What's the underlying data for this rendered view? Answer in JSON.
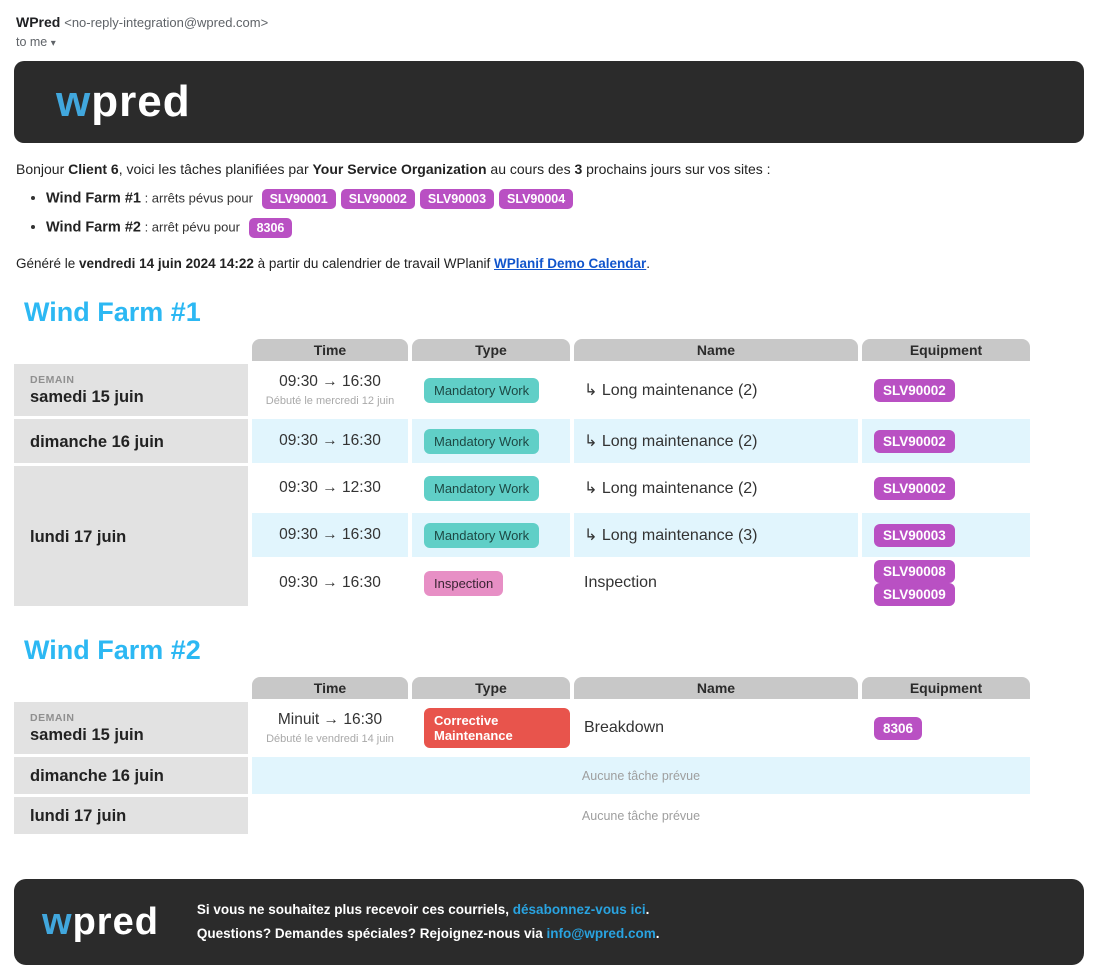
{
  "colors": {
    "accent_heading": "#2cb8f3",
    "brand_blue": "#41a7dd",
    "dark_bg": "#2b2b2b",
    "equipment_badge": "#b950c3",
    "type_teal": "#60cfc7",
    "type_pink": "#e78fc5",
    "type_red": "#e8544c",
    "row_stripe": "#e1f5fd",
    "header_cell": "#c8c8c8",
    "date_cell": "#e2e2e2",
    "body_link": "#1155cc",
    "footer_link": "#29a3e0"
  },
  "email_meta": {
    "sender_name": "WPred",
    "sender_address": "<no-reply-integration@wpred.com>",
    "recipient_label": "to me",
    "dropdown_icon": "▾"
  },
  "brand": {
    "logo_first": "w",
    "logo_rest": "pred"
  },
  "intro": {
    "greeting_prefix": "Bonjour ",
    "client": "Client 6",
    "mid1": ", voici les tâches planifiées par ",
    "org": "Your Service Organization",
    "mid2": " au cours des ",
    "days": "3",
    "suffix": " prochains jours sur vos sites :"
  },
  "summary": {
    "items": [
      {
        "site": "Wind Farm #1",
        "label": ": arrêts pévus pour",
        "badges": [
          "SLV90001",
          "SLV90002",
          "SLV90003",
          "SLV90004"
        ]
      },
      {
        "site": "Wind Farm #2",
        "label": ": arrêt pévu pour",
        "badges": [
          "8306"
        ]
      }
    ]
  },
  "generated": {
    "prefix": "Généré le ",
    "datetime": "vendredi 14 juin 2024 14:22",
    "mid": " à partir du calendrier de travail WPlanif ",
    "link": "WPlanif Demo Calendar",
    "suffix": "."
  },
  "table_columns": [
    "Time",
    "Type",
    "Name",
    "Equipment"
  ],
  "sections": [
    {
      "title": "Wind Farm #1",
      "rows": [
        {
          "tomorrow": "DEMAIN",
          "date": "samedi 15 juin",
          "rowspan": 1,
          "time": "09:30 → 16:30",
          "time_note": "Débuté le mercredi 12 juin",
          "type": "Mandatory Work",
          "type_style": "teal",
          "name": "↳ Long maintenance (2)",
          "equipment": [
            "SLV90002"
          ],
          "stripe": false
        },
        {
          "date": "dimanche 16 juin",
          "rowspan": 1,
          "time": "09:30 → 16:30",
          "type": "Mandatory Work",
          "type_style": "teal",
          "name": "↳ Long maintenance (2)",
          "equipment": [
            "SLV90002"
          ],
          "stripe": true
        },
        {
          "date": "lundi 17 juin",
          "rowspan": 3,
          "time": "09:30 → 12:30",
          "type": "Mandatory Work",
          "type_style": "teal",
          "name": "↳ Long maintenance (2)",
          "equipment": [
            "SLV90002"
          ],
          "stripe": false
        },
        {
          "time": "09:30 → 16:30",
          "type": "Mandatory Work",
          "type_style": "teal",
          "name": "↳ Long maintenance (3)",
          "equipment": [
            "SLV90003"
          ],
          "stripe": true
        },
        {
          "time": "09:30 → 16:30",
          "type": "Inspection",
          "type_style": "pink",
          "name": "Inspection",
          "equipment": [
            "SLV90008",
            "SLV90009"
          ],
          "stripe": false
        }
      ]
    },
    {
      "title": "Wind Farm #2",
      "rows": [
        {
          "tomorrow": "DEMAIN",
          "date": "samedi 15 juin",
          "rowspan": 1,
          "time": "Minuit → 16:30",
          "time_note": "Débuté le vendredi 14 juin",
          "type": "Corrective Maintenance",
          "type_style": "red",
          "name": "Breakdown",
          "equipment": [
            "8306"
          ],
          "stripe": false
        },
        {
          "date": "dimanche 16 juin",
          "rowspan": 1,
          "empty_text": "Aucune tâche prévue",
          "stripe": true
        },
        {
          "date": "lundi 17 juin",
          "rowspan": 1,
          "empty_text": "Aucune tâche prévue",
          "stripe": false
        }
      ]
    }
  ],
  "footer": {
    "line1_prefix": "Si vous ne souhaitez plus recevoir ces courriels, ",
    "line1_link": "désabonnez-vous ici",
    "line1_suffix": ".",
    "line2_prefix": "Questions? Demandes spéciales? Rejoignez-nous via ",
    "line2_link": "info@wpred.com",
    "line2_suffix": "."
  }
}
